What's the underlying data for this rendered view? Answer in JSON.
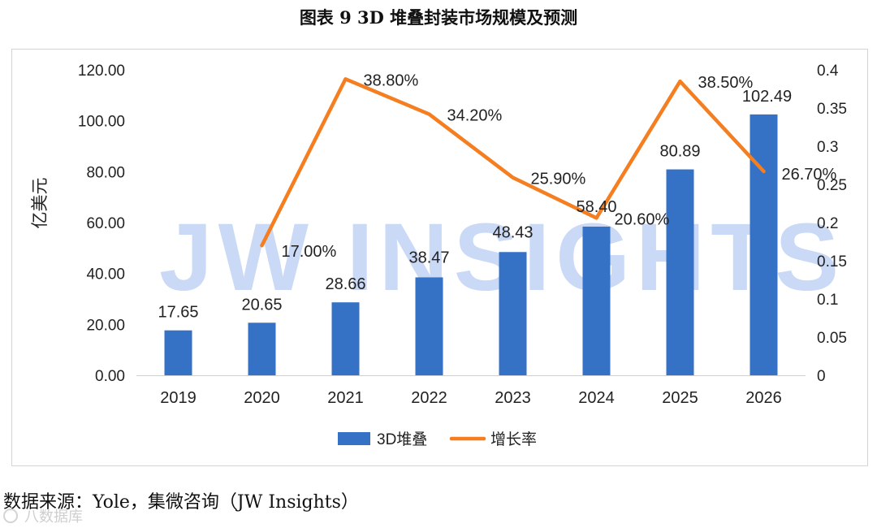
{
  "title": "图表 9 3D  堆叠封装市场规模及预测",
  "watermark": "JW INSIGHTS",
  "source_note": "数据来源：Yole，集微咨询（JW Insights）",
  "corner_mark": "八数据库",
  "colors": {
    "bar": "#3572c6",
    "line": "#f47e20",
    "axis_text": "#222222"
  },
  "chart_data": {
    "type": "bar",
    "categories": [
      "2019",
      "2020",
      "2021",
      "2022",
      "2023",
      "2024",
      "2025",
      "2026"
    ],
    "series": [
      {
        "name": "3D堆叠",
        "type": "bar",
        "axis": "left",
        "values": [
          17.65,
          20.65,
          28.66,
          38.47,
          48.43,
          58.4,
          80.89,
          102.49
        ],
        "labels": [
          "17.65",
          "20.65",
          "28.66",
          "38.47",
          "48.43",
          "58.40",
          "80.89",
          "102.49"
        ]
      },
      {
        "name": "增长率",
        "type": "line",
        "axis": "right",
        "values": [
          null,
          0.17,
          0.388,
          0.342,
          0.259,
          0.206,
          0.385,
          0.267
        ],
        "labels": [
          "",
          "17.00%",
          "38.80%",
          "34.20%",
          "25.90%",
          "20.60%",
          "38.50%",
          "26.70%"
        ]
      }
    ],
    "ylabel": "亿美元",
    "ylim": [
      0,
      120
    ],
    "yticks": [
      "0.00",
      "20.00",
      "40.00",
      "60.00",
      "80.00",
      "100.00",
      "120.00"
    ],
    "y2lim": [
      0,
      0.4
    ],
    "y2ticks": [
      "0",
      "0.05",
      "0.1",
      "0.15",
      "0.2",
      "0.25",
      "0.3",
      "0.35",
      "0.4"
    ],
    "legend": [
      "3D堆叠",
      "增长率"
    ],
    "legend_position": "bottom",
    "grid": false
  }
}
